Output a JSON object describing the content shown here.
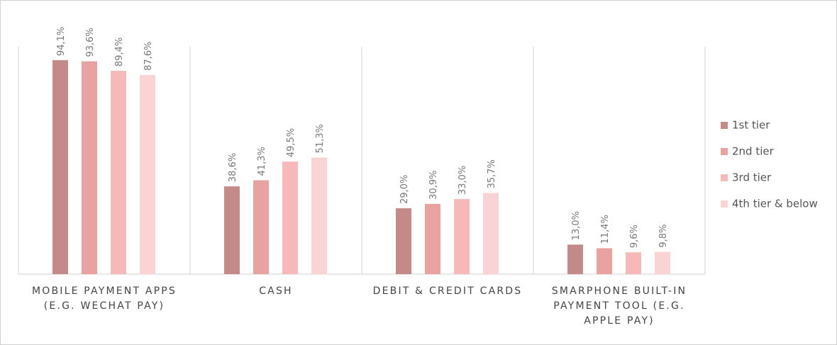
{
  "chart_data": {
    "type": "bar",
    "categories": [
      "MOBILE PAYMENT APPS (E.G. WECHAT PAY)",
      "CASH",
      "DEBIT & CREDIT CARDS",
      "SMARPHONE BUILT-IN PAYMENT TOOL (E.G. APPLE PAY)"
    ],
    "series": [
      {
        "name": "1st tier",
        "color": "#c48a88",
        "values": [
          94.1,
          38.6,
          29.0,
          13.0
        ],
        "value_labels": [
          "94,1%",
          "38,6%",
          "29,0%",
          "13,0%"
        ]
      },
      {
        "name": "2nd tier",
        "color": "#e8a3a1",
        "values": [
          93.6,
          41.3,
          30.9,
          11.4
        ],
        "value_labels": [
          "93,6%",
          "41,3%",
          "30,9%",
          "11,4%"
        ]
      },
      {
        "name": "3rd tier",
        "color": "#f6b8b8",
        "values": [
          89.4,
          49.5,
          33.0,
          9.6
        ],
        "value_labels": [
          "89,4%",
          "49,5%",
          "33,0%",
          "9,6%"
        ]
      },
      {
        "name": "4th tier & below",
        "color": "#fad4d4",
        "values": [
          87.6,
          51.3,
          35.7,
          9.8
        ],
        "value_labels": [
          "87,6%",
          "51,3%",
          "35,7%",
          "9,8%"
        ]
      }
    ],
    "ylim": [
      0,
      100
    ],
    "legend": "right"
  }
}
